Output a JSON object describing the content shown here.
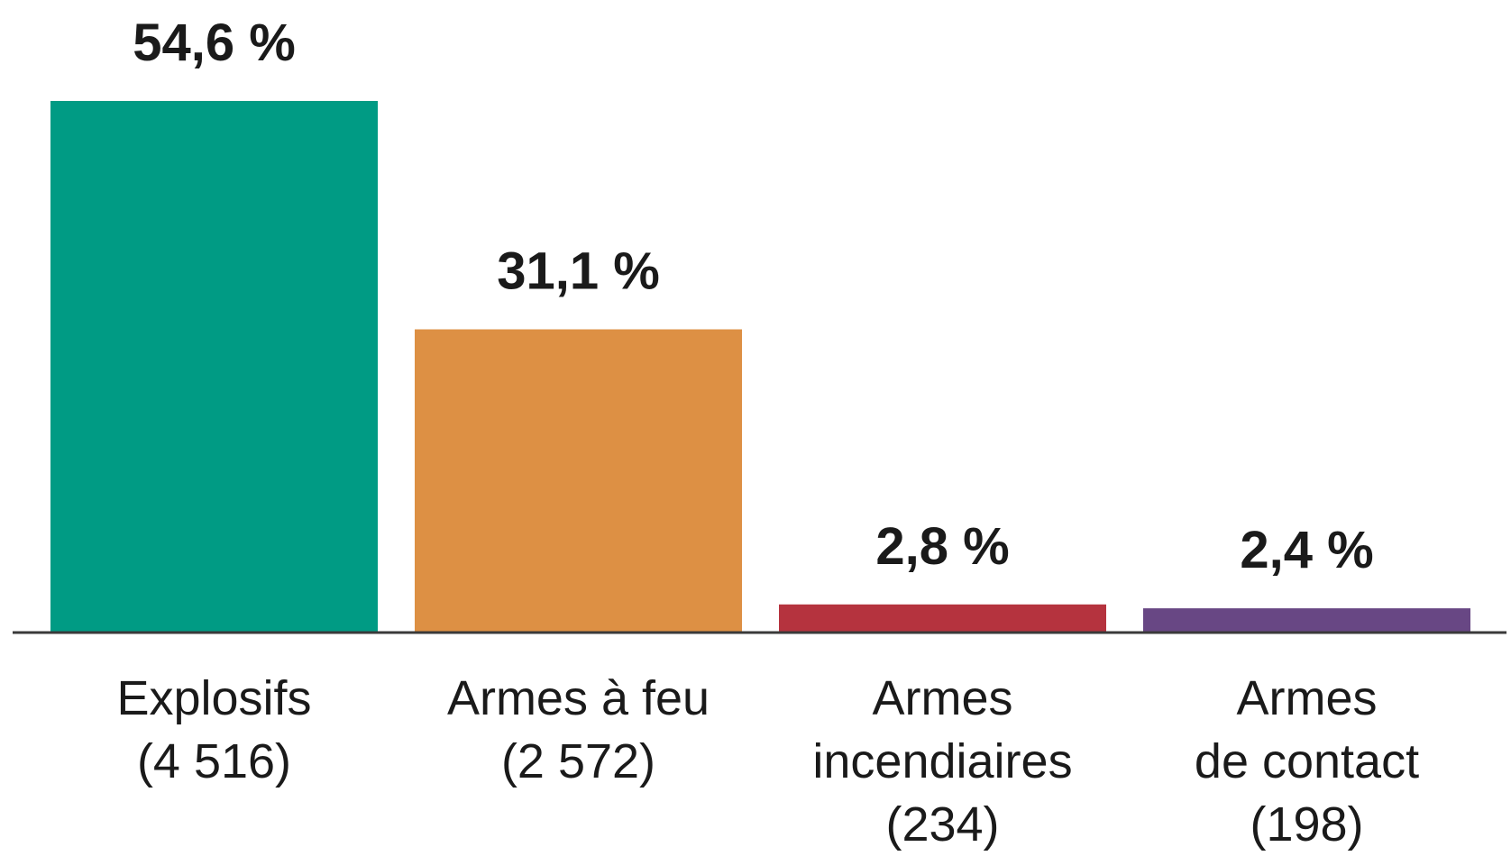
{
  "chart_data": {
    "type": "bar",
    "title": "",
    "xlabel": "",
    "ylabel": "",
    "ylim": [
      0,
      54.6
    ],
    "grid": false,
    "categories": [
      {
        "lines": [
          "Explosifs",
          "(4 516)"
        ]
      },
      {
        "lines": [
          "Armes à feu",
          "(2 572)"
        ]
      },
      {
        "lines": [
          "Armes",
          "incendiaires",
          "(234)"
        ]
      },
      {
        "lines": [
          "Armes",
          "de contact",
          "(198)"
        ]
      }
    ],
    "values": [
      54.6,
      31.1,
      2.8,
      2.4
    ],
    "counts": [
      4516,
      2572,
      234,
      198
    ],
    "data_labels": [
      "54,6 %",
      "31,1 %",
      "2,8 %",
      "2,4 %"
    ],
    "colors": [
      "#009b84",
      "#dd9044",
      "#b5333e",
      "#684784"
    ]
  }
}
